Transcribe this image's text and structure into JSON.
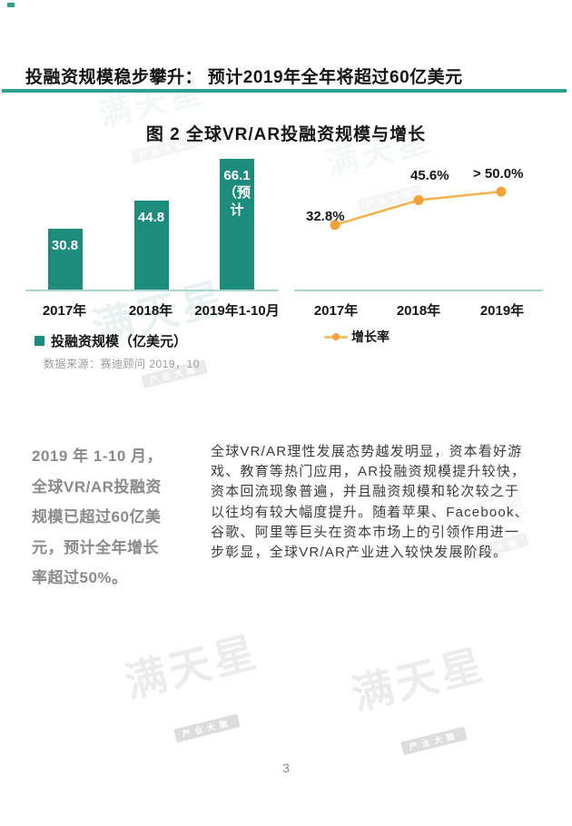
{
  "page_number": "3",
  "colors": {
    "teal": "#1E8C7D",
    "teal_accent": "#2F9E90",
    "axis_teal_light": "#A9D6CF",
    "orange_point": "#F0A33A",
    "orange_line": "#F5B14C"
  },
  "header": {
    "title": "投融资规模稳步攀升： 预计2019年全年将超过60亿美元"
  },
  "figure": {
    "title": "图 2 全球VR/AR投融资规模与增长",
    "legend": {
      "bars_label": "投融资规模（亿美元）",
      "line_label": "增长率"
    },
    "source": "数据来源：赛迪顾问 2019，10"
  },
  "chart_data": [
    {
      "type": "bar",
      "title": "图 2 全球VR/AR投融资规模与增长",
      "series_name": "投融资规模（亿美元）",
      "categories": [
        "2017年",
        "2018年",
        "2019年1-10月"
      ],
      "values": [
        30.8,
        44.8,
        66.1
      ],
      "value_labels": [
        "30.8",
        "44.8",
        "66.1\n（预计"
      ],
      "ylim": [
        0,
        70
      ],
      "grid": false,
      "bar_color": "#1E8C7D",
      "label_color": "#FFFFFF"
    },
    {
      "type": "line",
      "series_name": "增长率",
      "categories": [
        "2017年",
        "2018年",
        "2019年"
      ],
      "values": [
        32.8,
        45.6,
        50.0
      ],
      "point_labels": [
        "32.8%",
        "45.6%",
        "> 50.0%"
      ],
      "ylim": [
        0,
        72
      ],
      "grid": false,
      "line_color": "#F5B14C",
      "point_color": "#F0A33A"
    }
  ],
  "body": {
    "left_lines": [
      "2019 年 1-10 月，",
      "全球VR/AR投融资",
      "规模已超过60亿美",
      "元，预计全年增长",
      "率超过50%。"
    ],
    "right_lines": [
      "全球VR/AR理性发展态势越发明显，资本看好游",
      "戏、教育等热门应用，AR投融资规模提升较快，",
      "资本回流现象普遍，并且融资规模和轮次较之于",
      "以往均有较大幅度提升。随着苹果、Facebook、",
      "谷歌、阿里等巨头在资本市场上的引领作用进一",
      "步彰显，全球VR/AR产业进入较快发展阶段。"
    ]
  },
  "watermark": {
    "text": "满天星",
    "subtext": "产业大脑"
  }
}
